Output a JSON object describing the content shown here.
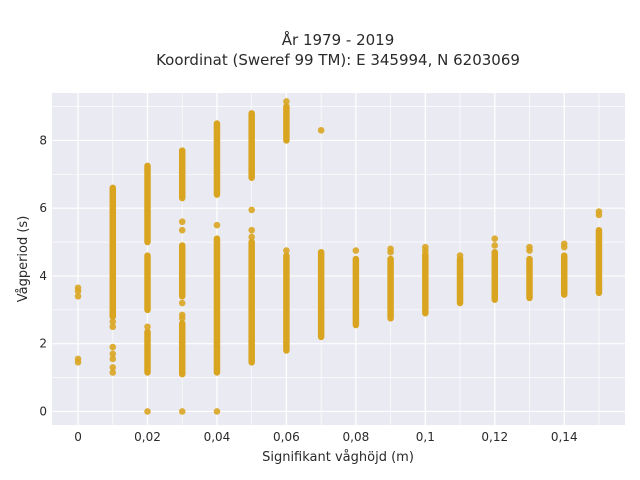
{
  "chart_data": {
    "type": "scatter",
    "title_lines": [
      "År 1979 - 2019",
      "Koordinat (Sweref 99 TM): E 345994, N 6203069"
    ],
    "xlabel": "Signifikant våghöjd (m)",
    "ylabel": "Vågperiod (s)",
    "xlim": [
      -0.0075,
      0.1575
    ],
    "ylim": [
      -0.4,
      9.4
    ],
    "x_ticks": [
      0,
      0.02,
      0.04,
      0.06,
      0.08,
      0.1,
      0.12,
      0.14
    ],
    "x_tick_labels": [
      "0",
      "0,02",
      "0,04",
      "0,06",
      "0,08",
      "0,1",
      "0,12",
      "0,14"
    ],
    "y_ticks": [
      0,
      2,
      4,
      6,
      8
    ],
    "y_tick_labels": [
      "0",
      "2",
      "4",
      "6",
      "8"
    ],
    "grid": true,
    "colors": {
      "marker": "#d9a521",
      "plot_bg": "#eaeaf2",
      "grid": "#ffffff"
    },
    "series": [
      {
        "ranges": [
          {
            "x": 0.01,
            "y_min": 2.8,
            "y_max": 6.6
          },
          {
            "x": 0.02,
            "y_min": 3.0,
            "y_max": 4.6
          },
          {
            "x": 0.02,
            "y_min": 5.0,
            "y_max": 7.25
          },
          {
            "x": 0.02,
            "y_min": 1.15,
            "y_max": 2.35
          },
          {
            "x": 0.03,
            "y_min": 6.3,
            "y_max": 7.7
          },
          {
            "x": 0.03,
            "y_min": 3.4,
            "y_max": 4.9
          },
          {
            "x": 0.03,
            "y_min": 1.1,
            "y_max": 2.6
          },
          {
            "x": 0.04,
            "y_min": 6.4,
            "y_max": 8.5
          },
          {
            "x": 0.04,
            "y_min": 1.15,
            "y_max": 5.1
          },
          {
            "x": 0.05,
            "y_min": 6.9,
            "y_max": 8.8
          },
          {
            "x": 0.05,
            "y_min": 1.45,
            "y_max": 5.0
          },
          {
            "x": 0.06,
            "y_min": 8.0,
            "y_max": 9.0
          },
          {
            "x": 0.06,
            "y_min": 1.8,
            "y_max": 4.6
          },
          {
            "x": 0.07,
            "y_min": 2.2,
            "y_max": 4.7
          },
          {
            "x": 0.08,
            "y_min": 2.55,
            "y_max": 4.5
          },
          {
            "x": 0.09,
            "y_min": 2.75,
            "y_max": 4.5
          },
          {
            "x": 0.1,
            "y_min": 2.9,
            "y_max": 4.6
          },
          {
            "x": 0.11,
            "y_min": 3.2,
            "y_max": 4.5
          },
          {
            "x": 0.12,
            "y_min": 3.3,
            "y_max": 4.7
          },
          {
            "x": 0.13,
            "y_min": 3.35,
            "y_max": 4.5
          },
          {
            "x": 0.14,
            "y_min": 3.45,
            "y_max": 4.6
          },
          {
            "x": 0.15,
            "y_min": 3.5,
            "y_max": 5.35
          }
        ],
        "points": [
          {
            "x": 0,
            "y": 3.65
          },
          {
            "x": 0,
            "y": 3.55
          },
          {
            "x": 0,
            "y": 3.4
          },
          {
            "x": 0,
            "y": 1.55
          },
          {
            "x": 0,
            "y": 1.45
          },
          {
            "x": 0.01,
            "y": 2.65
          },
          {
            "x": 0.01,
            "y": 2.5
          },
          {
            "x": 0.01,
            "y": 1.9
          },
          {
            "x": 0.01,
            "y": 1.7
          },
          {
            "x": 0.01,
            "y": 1.55
          },
          {
            "x": 0.01,
            "y": 1.3
          },
          {
            "x": 0.01,
            "y": 1.15
          },
          {
            "x": 0.02,
            "y": 2.5
          },
          {
            "x": 0.02,
            "y": 0
          },
          {
            "x": 0.03,
            "y": 5.6
          },
          {
            "x": 0.03,
            "y": 5.35
          },
          {
            "x": 0.03,
            "y": 3.2
          },
          {
            "x": 0.03,
            "y": 2.85
          },
          {
            "x": 0.03,
            "y": 2.75
          },
          {
            "x": 0.03,
            "y": 0
          },
          {
            "x": 0.04,
            "y": 5.5
          },
          {
            "x": 0.04,
            "y": 0
          },
          {
            "x": 0.05,
            "y": 5.95
          },
          {
            "x": 0.05,
            "y": 5.35
          },
          {
            "x": 0.05,
            "y": 5.15
          },
          {
            "x": 0.06,
            "y": 9.15
          },
          {
            "x": 0.06,
            "y": 4.75
          },
          {
            "x": 0.07,
            "y": 8.3
          },
          {
            "x": 0.08,
            "y": 4.75
          },
          {
            "x": 0.09,
            "y": 4.8
          },
          {
            "x": 0.09,
            "y": 4.7
          },
          {
            "x": 0.1,
            "y": 4.85
          },
          {
            "x": 0.1,
            "y": 4.75
          },
          {
            "x": 0.1,
            "y": 4.65
          },
          {
            "x": 0.11,
            "y": 4.6
          },
          {
            "x": 0.12,
            "y": 5.1
          },
          {
            "x": 0.12,
            "y": 4.9
          },
          {
            "x": 0.13,
            "y": 4.85
          },
          {
            "x": 0.13,
            "y": 4.75
          },
          {
            "x": 0.14,
            "y": 4.95
          },
          {
            "x": 0.14,
            "y": 4.85
          },
          {
            "x": 0.15,
            "y": 5.9
          },
          {
            "x": 0.15,
            "y": 5.8
          }
        ]
      }
    ]
  }
}
